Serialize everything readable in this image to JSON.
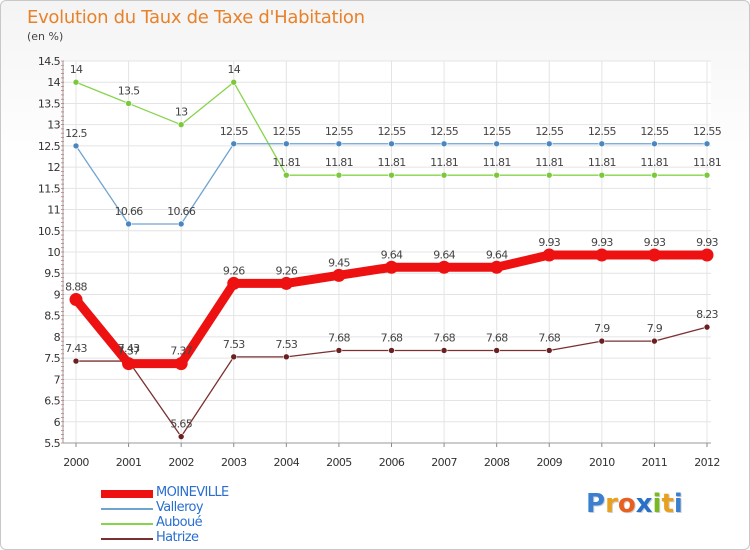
{
  "title": "Evolution du Taux de Taxe d'Habitation",
  "subtitle": "(en %)",
  "logo": {
    "text": "Proxiti",
    "letters": [
      "P",
      "r",
      "o",
      "x",
      "i",
      "t",
      "i"
    ],
    "colors": [
      "#3a7fd0",
      "#e8a020",
      "#e86020",
      "#2a6fc8",
      "#78b820",
      "#e8a020",
      "#3a7fd0"
    ]
  },
  "chart_data": {
    "type": "line",
    "title": "Evolution du Taux de Taxe d'Habitation",
    "ylabel": "(en %)",
    "xlabel": "",
    "ylim": [
      5.5,
      14.5
    ],
    "yticks": [
      "5.5",
      "6",
      "6.5",
      "7",
      "7.5",
      "8",
      "8.5",
      "9",
      "9.5",
      "10",
      "10.5",
      "11",
      "11.5",
      "12",
      "12.5",
      "13",
      "13.5",
      "14",
      "14.5"
    ],
    "categories": [
      "2000",
      "2001",
      "2002",
      "2003",
      "2004",
      "2005",
      "2006",
      "2007",
      "2008",
      "2009",
      "2010",
      "2011",
      "2012"
    ],
    "series": [
      {
        "name": "Auboué",
        "color": "#86d44a",
        "point_color": "#7cc83a",
        "style": "thin",
        "values": [
          14,
          13.5,
          13,
          14,
          11.81,
          11.81,
          11.81,
          11.81,
          11.81,
          11.81,
          11.81,
          11.81,
          11.81
        ],
        "labels": [
          "14",
          "13.5",
          "13",
          "14",
          "11.81",
          "11.81",
          "11.81",
          "11.81",
          "11.81",
          "11.81",
          "11.81",
          "11.81",
          "11.81"
        ]
      },
      {
        "name": "Valleroy",
        "color": "#6fa3d0",
        "point_color": "#4a86c0",
        "style": "thin",
        "values": [
          12.5,
          10.66,
          10.66,
          12.55,
          12.55,
          12.55,
          12.55,
          12.55,
          12.55,
          12.55,
          12.55,
          12.55,
          12.55
        ],
        "labels": [
          "12.5",
          "10.66",
          "10.66",
          "12.55",
          "12.55",
          "12.55",
          "12.55",
          "12.55",
          "12.55",
          "12.55",
          "12.55",
          "12.55",
          "12.55"
        ]
      },
      {
        "name": "Hatrize",
        "color": "#7a3030",
        "point_color": "#6a2020",
        "style": "thin",
        "values": [
          7.43,
          7.43,
          5.65,
          7.53,
          7.53,
          7.68,
          7.68,
          7.68,
          7.68,
          7.68,
          7.9,
          7.9,
          8.23
        ],
        "labels": [
          "7.43",
          "7.43",
          "5.65",
          "7.53",
          "7.53",
          "7.68",
          "7.68",
          "7.68",
          "7.68",
          "7.68",
          "7.9",
          "7.9",
          "8.23"
        ]
      },
      {
        "name": "MOINEVILLE",
        "color": "#ee1111",
        "point_color": "#ee1111",
        "style": "thick",
        "values": [
          8.88,
          7.37,
          7.37,
          9.26,
          9.26,
          9.45,
          9.64,
          9.64,
          9.64,
          9.93,
          9.93,
          9.93,
          9.93
        ],
        "labels": [
          "8.88",
          "7.37",
          "7.37",
          "9.26",
          "9.26",
          "9.45",
          "9.64",
          "9.64",
          "9.64",
          "9.93",
          "9.93",
          "9.93",
          "9.93"
        ]
      }
    ],
    "legend": [
      {
        "name": "MOINEVILLE",
        "color": "#ee1111",
        "text_color": "#2a6fd0",
        "style": "thick"
      },
      {
        "name": "Valleroy",
        "color": "#6fa3d0",
        "text_color": "#2a6fd0",
        "style": "thin"
      },
      {
        "name": "Auboué",
        "color": "#86d44a",
        "text_color": "#2a6fd0",
        "style": "thin"
      },
      {
        "name": "Hatrize",
        "color": "#7a3030",
        "text_color": "#2a6fd0",
        "style": "thin"
      }
    ],
    "legend_position": "bottom-left",
    "grid": true
  }
}
